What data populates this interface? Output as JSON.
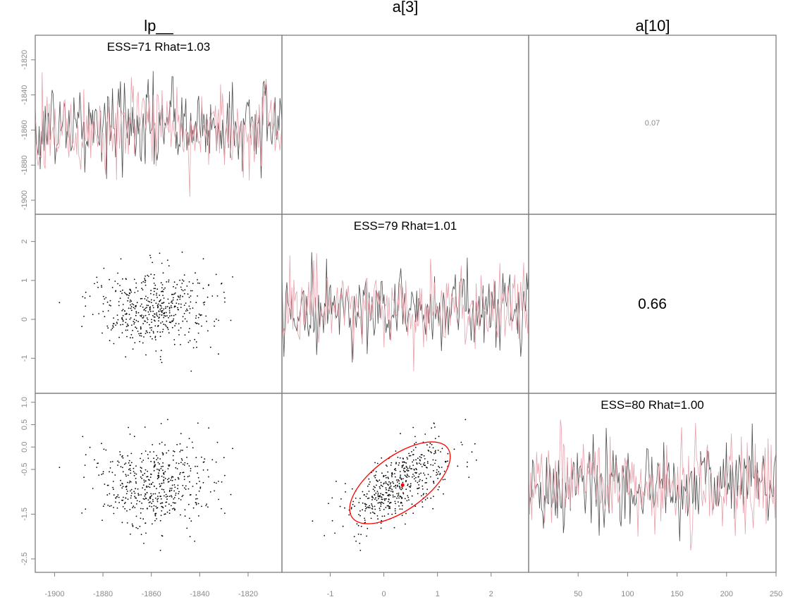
{
  "chart_data": {
    "type": "scatter",
    "layout": "pairs-matrix",
    "variables": [
      "lp__",
      "a[3]",
      "a[10]"
    ],
    "chain_colors": [
      "#4d4d4d",
      "#e8a0aa"
    ],
    "point_color": "#000000",
    "highlight_color": "#ff0000",
    "axes": {
      "lp__": {
        "range": [
          -1908,
          -1806
        ],
        "ticks": [
          -1900,
          -1880,
          -1860,
          -1840,
          -1820
        ]
      },
      "a[3]": {
        "range": [
          -1.9,
          2.7
        ],
        "ticks": [
          -1,
          0,
          1,
          2
        ]
      },
      "a[10]": {
        "range": [
          -2.8,
          1.2
        ],
        "ticks": [
          -2.5,
          -1.5,
          -0.5,
          0.0,
          0.5,
          1.0
        ]
      },
      "iteration": {
        "range": [
          0,
          250
        ],
        "ticks": [
          50,
          100,
          150,
          200,
          250
        ]
      }
    },
    "diagonal_stats": [
      {
        "variable": "lp__",
        "text": "ESS=71 Rhat=1.03"
      },
      {
        "variable": "a[3]",
        "text": "ESS=79 Rhat=1.01"
      },
      {
        "variable": "a[10]",
        "text": "ESS=80 Rhat=1.00"
      }
    ],
    "upper_correlations": [
      {
        "pair": [
          "lp__",
          "a[3]"
        ],
        "text": "",
        "tiny": true
      },
      {
        "pair": [
          "lp__",
          "a[10]"
        ],
        "text": "0.07",
        "tiny": true
      },
      {
        "pair": [
          "a[3]",
          "a[10]"
        ],
        "text": "0.66",
        "tiny": false
      }
    ],
    "scatter_summary": {
      "n_draws": 500,
      "means": {
        "lp__": -1858,
        "a[3]": 0.3,
        "a[10]": -0.8
      },
      "sds": {
        "lp__": 13,
        "a[3]": 0.5,
        "a[10]": 0.5
      },
      "corr_a3_a10": 0.66
    },
    "ellipse": {
      "center": [
        0.3,
        -0.8
      ],
      "rx": 1.1,
      "ry": 0.6,
      "angle_deg": -36
    },
    "mean_marker": {
      "x": 0.35,
      "y": -0.85
    }
  }
}
